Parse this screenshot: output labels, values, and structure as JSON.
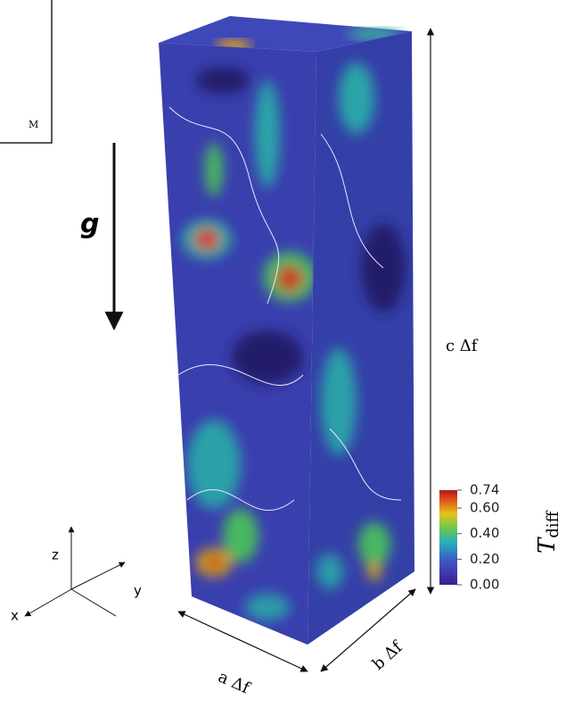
{
  "inset_label": "M",
  "gravity_label": "g",
  "dimensions": {
    "c": "c Δf",
    "a": "a Δf",
    "b": "b Δf"
  },
  "axes": {
    "z": "z",
    "y": "y",
    "x": "x"
  },
  "colorbar": {
    "label": "T",
    "label_sub": "diff",
    "lim": [
      0,
      0.74
    ],
    "ticks": [
      {
        "value": 0.74,
        "label": "0.74"
      },
      {
        "value": 0.6,
        "label": "0.60"
      },
      {
        "value": 0.4,
        "label": "0.40"
      },
      {
        "value": 0.2,
        "label": "0.20"
      },
      {
        "value": 0,
        "label": "0.00"
      }
    ]
  }
}
